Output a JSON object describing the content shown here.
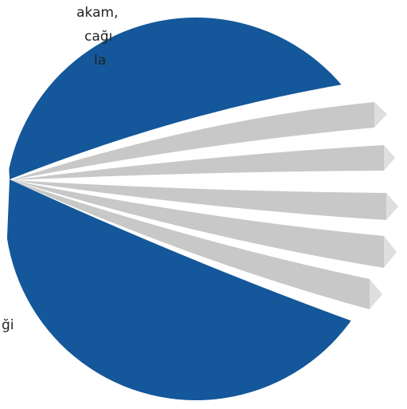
{
  "text_snippets": [
    "akam,",
    "cağı",
    "la",
    "ği"
  ]
}
